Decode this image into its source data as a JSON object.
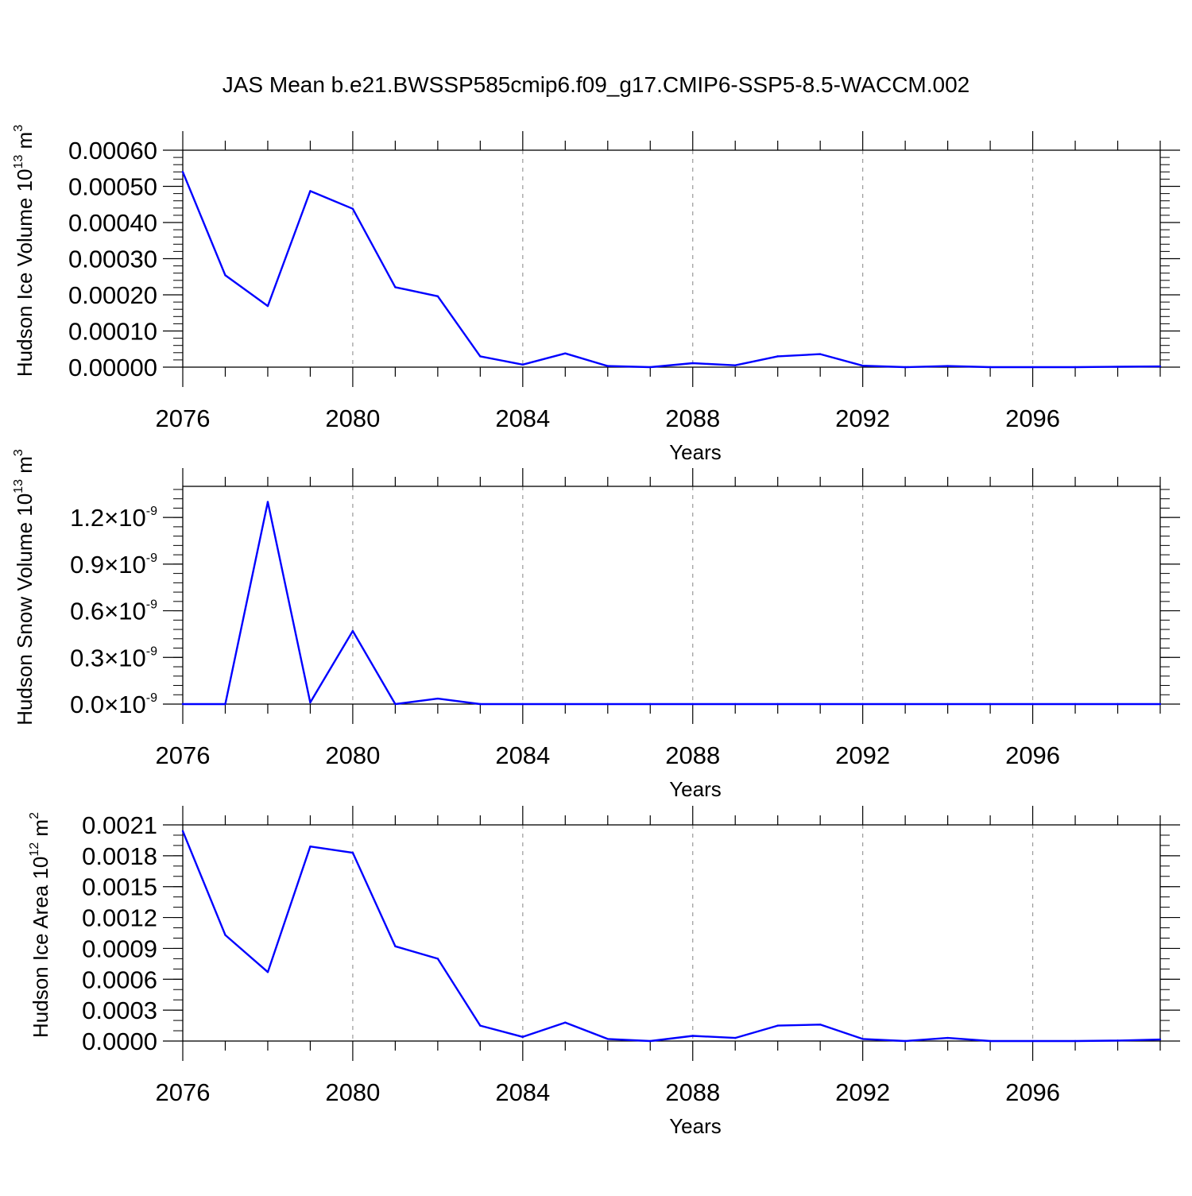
{
  "title": "JAS Mean b.e21.BWSSP585cmip6.f09_g17.CMIP6-SSP5-8.5-WACCM.002",
  "line_color": "#0000ff",
  "grid_color": "#999999",
  "chart_data": [
    {
      "type": "line",
      "name": "ice-volume",
      "ylabel": {
        "text": "Hudson Ice Volume 10",
        "exp": "13",
        "unit": " m",
        "unit_exp": "3"
      },
      "xlabel": "Years",
      "xlim": [
        2076,
        2099
      ],
      "ylim": [
        0.0,
        0.0006
      ],
      "yticks": [
        0.0,
        0.0001,
        0.0002,
        0.0003,
        0.0004,
        0.0005,
        0.0006
      ],
      "ytick_labels": [
        "0.00000",
        "0.00010",
        "0.00020",
        "0.00030",
        "0.00040",
        "0.00050",
        "0.00060"
      ],
      "yminor": 2e-05,
      "xticks": [
        2076,
        2080,
        2084,
        2088,
        2092,
        2096
      ],
      "xtick_labels": [
        "2076",
        "2080",
        "2084",
        "2088",
        "2092",
        "2096"
      ],
      "x": [
        2076,
        2077,
        2078,
        2079,
        2080,
        2081,
        2082,
        2083,
        2084,
        2085,
        2086,
        2087,
        2088,
        2089,
        2090,
        2091,
        2092,
        2093,
        2094,
        2095,
        2096,
        2097,
        2098,
        2099
      ],
      "values": [
        0.00054,
        0.000254,
        0.000169,
        0.000487,
        0.000438,
        0.000221,
        0.000196,
        3e-05,
        7e-06,
        3.8e-05,
        3e-06,
        0.0,
        1.1e-05,
        5e-06,
        3e-05,
        3.6e-05,
        4e-06,
        0.0,
        3e-06,
        0.0,
        0.0,
        0.0,
        1e-06,
        2e-06
      ]
    },
    {
      "type": "line",
      "name": "snow-volume",
      "ylabel": {
        "text": "Hudson Snow Volume 10",
        "exp": "13",
        "unit": " m",
        "unit_exp": "3"
      },
      "xlabel": "Years",
      "xlim": [
        2076,
        2099
      ],
      "ylim": [
        0.0,
        1.4e-09
      ],
      "yticks": [
        0.0,
        3e-10,
        6e-10,
        9e-10,
        1.2e-09
      ],
      "ytick_labels": [
        {
          "mant": "0.0",
          "exp": "-9"
        },
        {
          "mant": "0.3",
          "exp": "-9"
        },
        {
          "mant": "0.6",
          "exp": "-9"
        },
        {
          "mant": "0.9",
          "exp": "-9"
        },
        {
          "mant": "1.2",
          "exp": "-9"
        }
      ],
      "times_sign": "×10",
      "yminor": 6e-11,
      "xticks": [
        2076,
        2080,
        2084,
        2088,
        2092,
        2096
      ],
      "xtick_labels": [
        "2076",
        "2080",
        "2084",
        "2088",
        "2092",
        "2096"
      ],
      "x": [
        2076,
        2077,
        2078,
        2079,
        2080,
        2081,
        2082,
        2083,
        2084,
        2085,
        2086,
        2087,
        2088,
        2089,
        2090,
        2091,
        2092,
        2093,
        2094,
        2095,
        2096,
        2097,
        2098,
        2099
      ],
      "values": [
        0,
        0,
        1.3e-09,
        1e-11,
        4.7e-10,
        0.0,
        3.5e-11,
        0,
        0,
        0,
        0,
        0,
        0,
        0,
        0,
        0,
        0,
        0,
        0,
        0,
        0,
        0,
        0,
        0
      ]
    },
    {
      "type": "line",
      "name": "ice-area",
      "ylabel": {
        "text": "Hudson Ice Area 10",
        "exp": "12",
        "unit": " m",
        "unit_exp": "2"
      },
      "xlabel": "Years",
      "xlim": [
        2076,
        2099
      ],
      "ylim": [
        0.0,
        0.0021
      ],
      "yticks": [
        0.0,
        0.0003,
        0.0006,
        0.0009,
        0.0012,
        0.0015,
        0.0018,
        0.0021
      ],
      "ytick_labels": [
        "0.0000",
        "0.0003",
        "0.0006",
        "0.0009",
        "0.0012",
        "0.0015",
        "0.0018",
        "0.0021"
      ],
      "yminor": 0.0001,
      "xticks": [
        2076,
        2080,
        2084,
        2088,
        2092,
        2096
      ],
      "xtick_labels": [
        "2076",
        "2080",
        "2084",
        "2088",
        "2092",
        "2096"
      ],
      "x": [
        2076,
        2077,
        2078,
        2079,
        2080,
        2081,
        2082,
        2083,
        2084,
        2085,
        2086,
        2087,
        2088,
        2089,
        2090,
        2091,
        2092,
        2093,
        2094,
        2095,
        2096,
        2097,
        2098,
        2099
      ],
      "values": [
        0.00204,
        0.00103,
        0.00067,
        0.00189,
        0.00183,
        0.00092,
        0.0008,
        0.00015,
        4e-05,
        0.00018,
        2e-05,
        0.0,
        5e-05,
        3e-05,
        0.00015,
        0.00016,
        2e-05,
        0.0,
        3e-05,
        0.0,
        0.0,
        0.0,
        5e-06,
        1.5e-05
      ]
    }
  ]
}
